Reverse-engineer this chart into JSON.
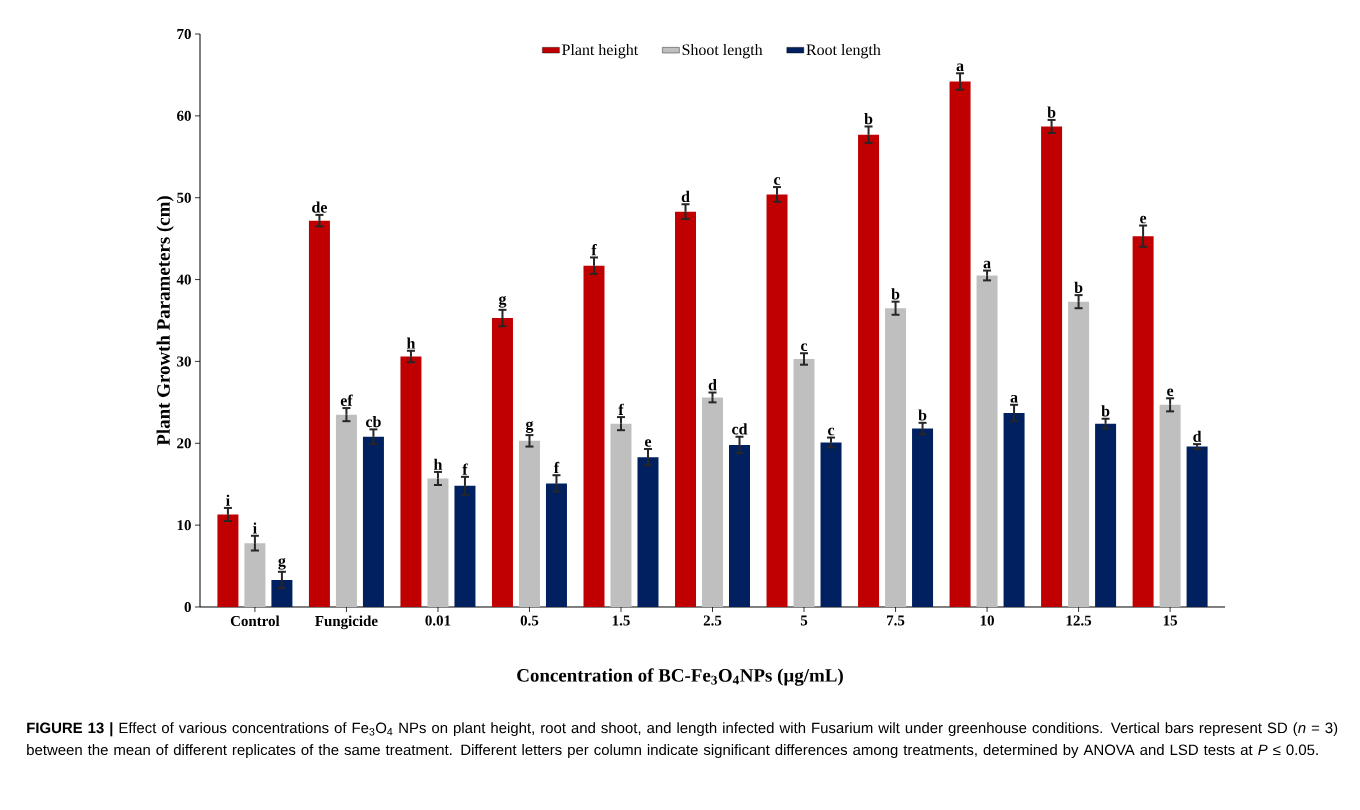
{
  "chart_data": {
    "type": "bar",
    "xlabel": "Concentration of BC-Fe$_{3}$O$_{4}$NPs (µg/mL)",
    "ylabel": "Plant Growth Parameters (cm)",
    "categories": [
      "Control",
      "Fungicide",
      "0.01",
      "0.5",
      "1.5",
      "2.5",
      "5",
      "7.5",
      "10",
      "12.5",
      "15"
    ],
    "series": [
      {
        "name": "Plant height",
        "color": "#c00000",
        "values": [
          11.3,
          47.2,
          30.6,
          35.3,
          41.7,
          48.3,
          50.4,
          57.7,
          64.2,
          58.7,
          45.3
        ],
        "errors": [
          0.8,
          0.7,
          0.7,
          1.0,
          1.0,
          0.9,
          0.9,
          1.0,
          1.0,
          0.8,
          1.3
        ],
        "value_labels": [
          "i",
          "de",
          "h",
          "g",
          "f",
          "d",
          "c",
          "b",
          "a",
          "b",
          "e"
        ]
      },
      {
        "name": "Shoot length",
        "color": "#bfbfbf",
        "values": [
          7.8,
          23.5,
          15.7,
          20.3,
          22.4,
          25.6,
          30.3,
          36.5,
          40.5,
          37.3,
          24.7
        ],
        "errors": [
          0.9,
          0.8,
          0.8,
          0.7,
          0.8,
          0.6,
          0.7,
          0.8,
          0.6,
          0.8,
          0.8
        ],
        "value_labels": [
          "i",
          "ef",
          "h",
          "g",
          "f",
          "d",
          "c",
          "b",
          "a",
          "b",
          "e"
        ]
      },
      {
        "name": "Root length",
        "color": "#002060",
        "values": [
          3.3,
          20.8,
          14.8,
          15.1,
          18.3,
          19.8,
          20.1,
          21.8,
          23.7,
          22.4,
          19.6
        ],
        "errors": [
          1.0,
          0.9,
          1.1,
          1.0,
          1.0,
          1.0,
          0.6,
          0.7,
          1.0,
          0.6,
          0.3
        ],
        "value_labels": [
          "g",
          "cb",
          "f",
          "f",
          "e",
          "cd",
          "c",
          "b",
          "a",
          "b",
          "d"
        ]
      }
    ],
    "ylim": [
      0,
      70
    ],
    "yticks": [
      0,
      10,
      20,
      30,
      40,
      50,
      60,
      70
    ],
    "legend": "top",
    "annotations": [
      "**FIGURE 13 |** Effect of various concentrations of Fe$_{3}$O$_{4}$ NPs on plant height, root and shoot, and length infected with Fusarium wilt under greenhouse conditions. Vertical bars represent SD (*n* = 3) between the mean of different replicates of the same treatment. Different letters per column indicate significant differences among treatments, determined by ANOVA and LSD tests at *P* ≤ 0.05."
    ]
  }
}
